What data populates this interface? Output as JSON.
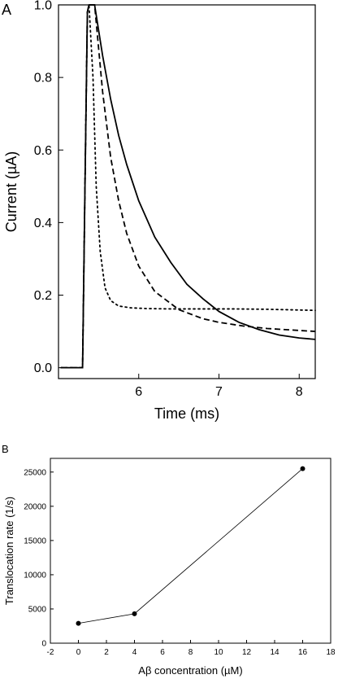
{
  "panels": {
    "a": {
      "label": "A"
    },
    "b": {
      "label": "B"
    }
  },
  "chart_data": [
    {
      "type": "line",
      "panel": "A",
      "xlabel": "Time (ms)",
      "ylabel": "Current (µA)",
      "xlim": [
        5.0,
        8.2
      ],
      "ylim": [
        -0.03,
        1.0
      ],
      "xticks": [
        6,
        7,
        8
      ],
      "yticks": [
        0.0,
        0.2,
        0.4,
        0.6,
        0.8,
        1.0
      ],
      "xtick_labels": [
        "6",
        "7",
        "8"
      ],
      "ytick_labels": [
        "0.0",
        "0.2",
        "0.4",
        "0.6",
        "0.8",
        "1.0"
      ],
      "grid": false,
      "series": [
        {
          "style": "solid",
          "x": [
            5.03,
            5.3,
            5.33,
            5.36,
            5.38,
            5.45,
            5.55,
            5.65,
            5.75,
            5.85,
            6.0,
            6.2,
            6.4,
            6.6,
            6.8,
            7.0,
            7.25,
            7.5,
            7.75,
            8.0,
            8.2
          ],
          "y": [
            0.0,
            0.0,
            0.5,
            0.98,
            1.0,
            1.0,
            0.86,
            0.74,
            0.64,
            0.56,
            0.46,
            0.36,
            0.29,
            0.23,
            0.19,
            0.155,
            0.125,
            0.105,
            0.09,
            0.082,
            0.078
          ]
        },
        {
          "style": "dashed",
          "x": [
            5.03,
            5.3,
            5.33,
            5.36,
            5.38,
            5.45,
            5.55,
            5.65,
            5.75,
            5.85,
            6.0,
            6.2,
            6.5,
            6.8,
            7.0,
            7.3,
            7.6,
            7.9,
            8.2
          ],
          "y": [
            0.0,
            0.0,
            0.5,
            0.98,
            1.0,
            1.0,
            0.76,
            0.58,
            0.46,
            0.37,
            0.28,
            0.21,
            0.16,
            0.135,
            0.125,
            0.115,
            0.108,
            0.104,
            0.1
          ]
        },
        {
          "style": "dotted",
          "x": [
            5.03,
            5.3,
            5.33,
            5.36,
            5.38,
            5.43,
            5.47,
            5.52,
            5.58,
            5.65,
            5.75,
            5.9,
            6.1,
            6.4,
            6.8,
            7.2,
            7.6,
            8.2
          ],
          "y": [
            0.0,
            0.0,
            0.5,
            0.98,
            1.0,
            0.8,
            0.5,
            0.32,
            0.22,
            0.185,
            0.17,
            0.165,
            0.163,
            0.162,
            0.162,
            0.162,
            0.161,
            0.158
          ]
        }
      ]
    },
    {
      "type": "line",
      "panel": "B",
      "xlabel": "Aβ concentration (µM)",
      "ylabel": "Translocation rate (1/s)",
      "xlim": [
        -2,
        18
      ],
      "ylim": [
        0,
        27000
      ],
      "xticks": [
        -2,
        0,
        2,
        4,
        6,
        8,
        10,
        12,
        14,
        16,
        18
      ],
      "yticks": [
        0,
        5000,
        10000,
        15000,
        20000,
        25000
      ],
      "xtick_labels": [
        "-2",
        "0",
        "2",
        "4",
        "6",
        "8",
        "10",
        "12",
        "14",
        "16",
        "18"
      ],
      "ytick_labels": [
        "0",
        "5000",
        "10000",
        "15000",
        "20000",
        "25000"
      ],
      "grid": false,
      "series": [
        {
          "x": [
            0,
            4,
            16
          ],
          "y": [
            2900,
            4300,
            25500
          ]
        }
      ]
    }
  ]
}
